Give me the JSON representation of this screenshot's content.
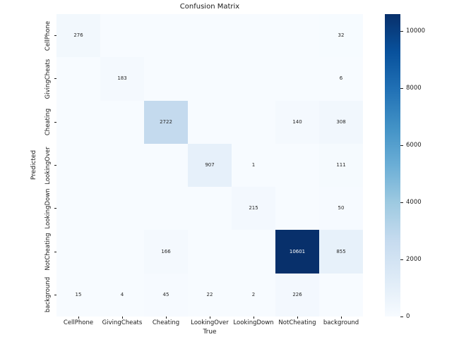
{
  "chart_data": {
    "type": "heatmap",
    "title": "Confusion Matrix",
    "xlabel": "True",
    "ylabel": "Predicted",
    "x_categories": [
      "CellPhone",
      "GivingCheats",
      "Cheating",
      "LookingOver",
      "LookingDown",
      "NotCheating",
      "background"
    ],
    "y_categories": [
      "CellPhone",
      "GivingCheats",
      "Cheating",
      "LookingOver",
      "LookingDown",
      "NotCheating",
      "background"
    ],
    "values": [
      [
        276,
        null,
        null,
        null,
        null,
        null,
        32
      ],
      [
        null,
        183,
        null,
        null,
        null,
        null,
        6
      ],
      [
        null,
        null,
        2722,
        null,
        null,
        140,
        308
      ],
      [
        null,
        null,
        null,
        907,
        1,
        null,
        111
      ],
      [
        null,
        null,
        null,
        null,
        215,
        null,
        50
      ],
      [
        null,
        null,
        166,
        null,
        null,
        10601,
        855
      ],
      [
        15,
        4,
        45,
        22,
        2,
        226,
        null
      ]
    ],
    "vmin": 0,
    "vmax": 10601,
    "colormap": "Blues",
    "colorbar_ticks": [
      0,
      2000,
      4000,
      6000,
      8000,
      10000
    ],
    "colorbar_position": "right",
    "grid": false,
    "legend": false
  },
  "colors": {
    "background": "#ffffff",
    "annotation_dark": "#262626",
    "annotation_light": "#ffffff",
    "tick_color": "#1a1a1a",
    "cmap_stops": [
      {
        "t": 0.0,
        "color": "#f7fbff"
      },
      {
        "t": 0.125,
        "color": "#deebf7"
      },
      {
        "t": 0.25,
        "color": "#c6dbef"
      },
      {
        "t": 0.375,
        "color": "#9ecae1"
      },
      {
        "t": 0.5,
        "color": "#6baed6"
      },
      {
        "t": 0.625,
        "color": "#4292c6"
      },
      {
        "t": 0.75,
        "color": "#2171b5"
      },
      {
        "t": 0.875,
        "color": "#08519c"
      },
      {
        "t": 1.0,
        "color": "#08306b"
      }
    ]
  }
}
